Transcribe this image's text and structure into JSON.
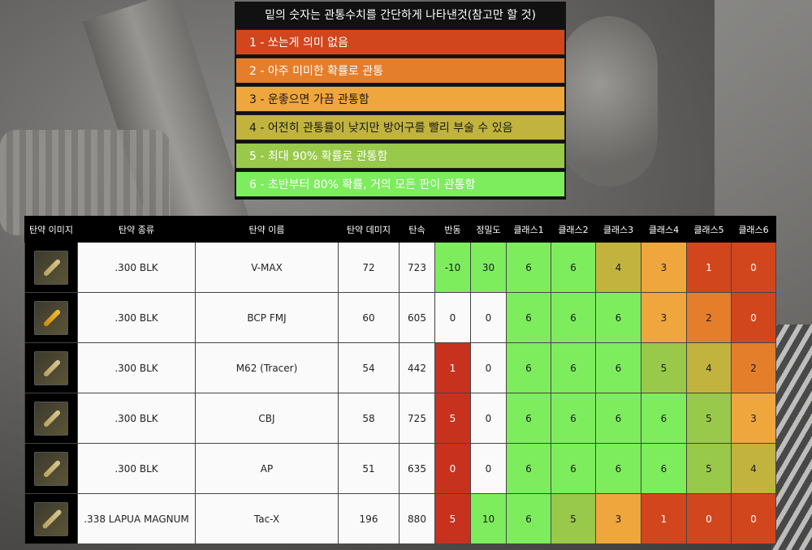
{
  "legend": {
    "title": "밑의 숫자는 관통수치를 간단하게 나타낸것(참고만 할 것)",
    "items": [
      {
        "label": "1 - 쏘는게 의미 없음",
        "color": "#d2461e"
      },
      {
        "label": "2 - 아주 미미한 확률로 관통",
        "color": "#e57e2b"
      },
      {
        "label": "3 - 운좋으면 가끔 관통함",
        "color": "#efa63c"
      },
      {
        "label": "4 - 어전히 관통률이 낮지만 방어구를 빨리 부술 수 있음",
        "color": "#c1b33e"
      },
      {
        "label": "5 - 최대 90% 확률로 관통함",
        "color": "#98c94a"
      },
      {
        "label": "6 - 초반부터 80% 확률, 거의 모든 판이 관통함",
        "color": "#7ded5e"
      }
    ]
  },
  "table": {
    "headers": [
      "탄약 이미지",
      "탄약 종류",
      "탄약 이름",
      "탄약 데미지",
      "탄속",
      "반동",
      "정밀도",
      "클래스1",
      "클래스2",
      "클래스3",
      "클래스4",
      "클래스5",
      "클래스6"
    ],
    "rows": [
      {
        "type": ".300 BLK",
        "name": "V-MAX",
        "damage": "72",
        "speed": "723",
        "recoil": "-10",
        "accuracy": "30",
        "classes": [
          "6",
          "6",
          "4",
          "3",
          "1",
          "0"
        ]
      },
      {
        "type": ".300 BLK",
        "name": "BCP FMJ",
        "damage": "60",
        "speed": "605",
        "recoil": "0",
        "accuracy": "0",
        "classes": [
          "6",
          "6",
          "6",
          "3",
          "2",
          "0"
        ]
      },
      {
        "type": ".300 BLK",
        "name": "M62 (Tracer)",
        "damage": "54",
        "speed": "442",
        "recoil": "1",
        "accuracy": "0",
        "classes": [
          "6",
          "6",
          "6",
          "5",
          "4",
          "2"
        ]
      },
      {
        "type": ".300 BLK",
        "name": "CBJ",
        "damage": "58",
        "speed": "725",
        "recoil": "5",
        "accuracy": "0",
        "classes": [
          "6",
          "6",
          "6",
          "6",
          "5",
          "3"
        ]
      },
      {
        "type": ".300 BLK",
        "name": "AP",
        "damage": "51",
        "speed": "635",
        "recoil": "0",
        "accuracy": "0",
        "classes": [
          "6",
          "6",
          "6",
          "6",
          "5",
          "4"
        ]
      },
      {
        "type": ".338 LAPUA MAGNUM",
        "name": "Tac-X",
        "damage": "196",
        "speed": "880",
        "recoil": "5",
        "accuracy": "10",
        "classes": [
          "6",
          "5",
          "3",
          "1",
          "0",
          "0"
        ]
      }
    ]
  }
}
